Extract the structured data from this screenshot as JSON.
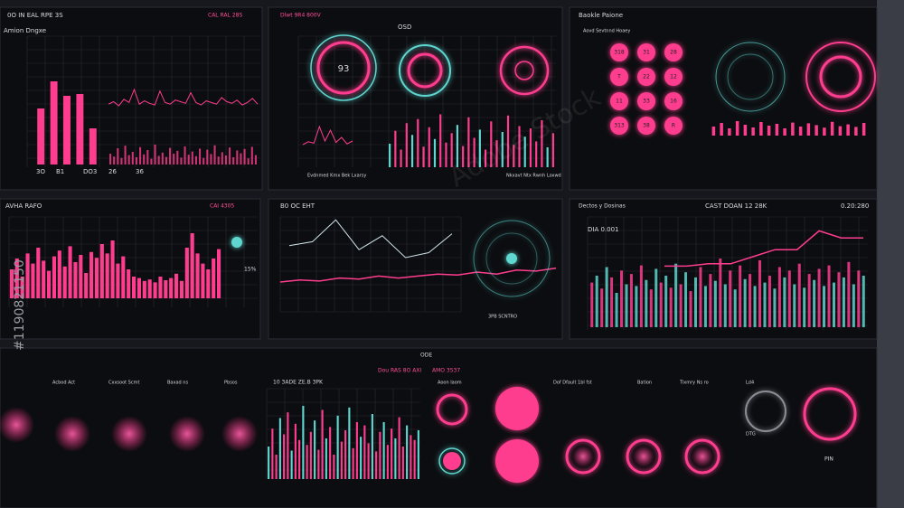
{
  "watermark": "Adobe Stock",
  "stock_id": "#1190821150",
  "panels": {
    "a": {
      "title": "0O IN EAL RPE 3S",
      "subtitle": "CAL RAL 28S",
      "label": "Amion Dngxe",
      "footer": [
        "3O",
        "B1",
        "DO3",
        "26",
        "36"
      ],
      "bars": [
        62,
        92,
        76,
        78,
        40
      ],
      "line": [
        72,
        75,
        70,
        78,
        74,
        90,
        72,
        76,
        73,
        71,
        88,
        74,
        72,
        77,
        75,
        73,
        86,
        74,
        71,
        76,
        74,
        72,
        80,
        75,
        73,
        77,
        71,
        74,
        79,
        72
      ],
      "strip": [
        30,
        22,
        45,
        18,
        52,
        26,
        35,
        20,
        48,
        28,
        40,
        16,
        55,
        24,
        33,
        21,
        46,
        30,
        38,
        19,
        50,
        27,
        36,
        23,
        44,
        18,
        41,
        29,
        53,
        22,
        34,
        25,
        47,
        20,
        39,
        31,
        43,
        17,
        49,
        26
      ]
    },
    "b": {
      "title": "Dlwt 9R4 800V",
      "label": "OSD",
      "gauge": "93",
      "notes": [
        "Evdnmed Kmx Bek Lxarsy",
        "Nkxavt Ntx Rwnh Loxwd"
      ],
      "spikes": [
        40,
        62,
        30,
        75,
        55,
        82,
        35,
        68,
        48,
        90,
        42,
        58,
        72,
        36,
        85,
        50,
        64,
        30,
        78,
        46,
        60,
        88,
        38,
        70,
        52,
        66,
        44,
        80,
        34,
        58
      ],
      "line": [
        20,
        28,
        24,
        70,
        30,
        60,
        26,
        40,
        22,
        30
      ]
    },
    "c": {
      "title": "Baokle Paione",
      "label": "Aovd Sevtnnd Hoaey",
      "circles": [
        "318",
        "31",
        "28",
        "T",
        "22",
        "12",
        "11",
        "33",
        "16",
        "313",
        "38",
        "R"
      ],
      "spikes": [
        50,
        70,
        40,
        80,
        60,
        45,
        75,
        55,
        65,
        40,
        72,
        50,
        68,
        58,
        44,
        76,
        52,
        62,
        48,
        70
      ]
    },
    "d": {
      "title": "AVHA RAFO",
      "subtitle": "CAI 4305",
      "pct": "15%",
      "bars": [
        40,
        55,
        30,
        62,
        48,
        70,
        52,
        38,
        58,
        66,
        44,
        72,
        50,
        60,
        35,
        64,
        56,
        75,
        62,
        80,
        48,
        58,
        40,
        30,
        28,
        24,
        26,
        22,
        30,
        25,
        28,
        34,
        24,
        70,
        90,
        62,
        48,
        40,
        55,
        68
      ]
    },
    "e": {
      "title": "B0 OC EHT",
      "caption": "3PB SCNTRO",
      "line": [
        62,
        66,
        88,
        58,
        72,
        50,
        55,
        74
      ],
      "pink": [
        30,
        32,
        31,
        34,
        33,
        36,
        34,
        36,
        38,
        37,
        40,
        38,
        42,
        41,
        44
      ]
    },
    "f": {
      "title": "Dectos y Dosinas",
      "subtitle": "CAST DOAN 12 28K",
      "value": "0.20:280",
      "dia": "DIA 0.001",
      "bars": [
        52,
        60,
        45,
        70,
        58,
        40,
        66,
        50,
        62,
        48,
        72,
        55,
        44,
        68,
        52,
        60,
        46,
        74,
        50,
        64,
        42,
        58,
        70,
        48,
        62,
        54,
        80,
        50,
        66,
        44,
        72,
        56,
        62,
        48,
        78,
        52,
        60,
        45,
        70,
        58,
        66,
        50,
        74,
        46,
        62,
        55,
        68,
        48,
        72,
        52,
        64,
        58,
        76,
        50,
        66,
        60
      ],
      "line": [
        52,
        52,
        54,
        54,
        60,
        66,
        66,
        82,
        76,
        76
      ]
    },
    "bottom": {
      "title": "ODE",
      "labels": [
        "Acbod Act",
        "Cxxsoot Scmt",
        "Baxad ns",
        "Pbsos",
        "10 3ADE ZE.B 3PK",
        "Dou RAS 8O AXI",
        "AMO 3537",
        "Aoon Iaom",
        "Dof Dfault 1bl fst",
        "Bation",
        "Tixmry Ns ro",
        "Ld4",
        "DTG"
      ],
      "bars": [
        40,
        62,
        30,
        75,
        55,
        82,
        35,
        68,
        48,
        90,
        42,
        58,
        72,
        36,
        85,
        50,
        64,
        30,
        78,
        46,
        60,
        88,
        38,
        70,
        52,
        66,
        44,
        80,
        34,
        58,
        70,
        42,
        62,
        50,
        76,
        40,
        66,
        54,
        48,
        60
      ],
      "pin": "PIN"
    }
  }
}
